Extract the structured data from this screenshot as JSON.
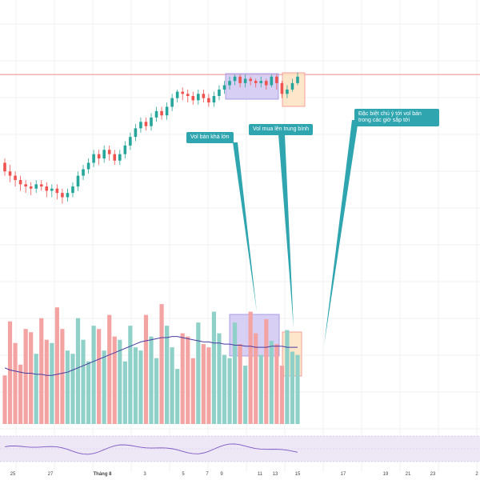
{
  "colors": {
    "up": "#26a69a",
    "down": "#ef5350",
    "up_vol": "#8fd1c8",
    "down_vol": "#f4a3a3",
    "vol_ma": "#4a3b9e",
    "rsi": "#7e57c2",
    "rsi_band": "#ede7f6",
    "resistance": "#f28b8b",
    "highlight_purple": "#c9bff0",
    "highlight_orange": "#fde2bf",
    "callout": "#2fa5b0"
  },
  "callouts": [
    {
      "text": "Vol bán khá lớn"
    },
    {
      "text": "Vol mua lên trung bình"
    },
    {
      "text": "Đặc biệt chú ý tới vol  bán\ntrong các giờ sắp tới"
    }
  ],
  "chart_data": {
    "type": "candlestick",
    "x_ticks": [
      "25",
      "27",
      "Tháng 8",
      "3",
      "5",
      "7",
      "9",
      "11",
      "13",
      "15",
      "17",
      "19",
      "21",
      "23",
      "2"
    ],
    "price": [
      [
        56,
        52,
        50,
        58
      ],
      [
        52,
        50,
        47,
        55
      ],
      [
        50,
        48,
        45,
        52
      ],
      [
        48,
        46,
        43,
        50
      ],
      [
        46,
        45,
        42,
        48
      ],
      [
        45,
        44,
        41,
        47
      ],
      [
        44,
        46,
        42,
        48
      ],
      [
        46,
        45,
        43,
        48
      ],
      [
        45,
        43,
        40,
        47
      ],
      [
        43,
        44,
        40,
        46
      ],
      [
        44,
        42,
        39,
        46
      ],
      [
        42,
        40,
        37,
        44
      ],
      [
        40,
        42,
        38,
        44
      ],
      [
        42,
        45,
        40,
        47
      ],
      [
        45,
        50,
        43,
        52
      ],
      [
        50,
        53,
        48,
        55
      ],
      [
        53,
        56,
        51,
        58
      ],
      [
        56,
        60,
        54,
        62
      ],
      [
        60,
        58,
        55,
        62
      ],
      [
        58,
        62,
        56,
        64
      ],
      [
        62,
        60,
        57,
        64
      ],
      [
        60,
        57,
        55,
        62
      ],
      [
        57,
        60,
        55,
        62
      ],
      [
        60,
        64,
        58,
        66
      ],
      [
        64,
        68,
        62,
        70
      ],
      [
        68,
        72,
        66,
        74
      ],
      [
        72,
        75,
        70,
        77
      ],
      [
        75,
        73,
        71,
        77
      ],
      [
        73,
        77,
        71,
        79
      ],
      [
        77,
        80,
        75,
        82
      ],
      [
        80,
        78,
        76,
        82
      ],
      [
        78,
        82,
        76,
        84
      ],
      [
        82,
        86,
        80,
        88
      ],
      [
        86,
        89,
        84,
        90
      ],
      [
        89,
        88,
        85,
        91
      ],
      [
        88,
        87,
        84,
        90
      ],
      [
        87,
        85,
        83,
        89
      ],
      [
        85,
        88,
        83,
        90
      ],
      [
        88,
        86,
        84,
        90
      ],
      [
        86,
        84,
        82,
        88
      ],
      [
        84,
        87,
        82,
        89
      ],
      [
        87,
        90,
        85,
        92
      ],
      [
        90,
        92,
        88,
        94
      ],
      [
        92,
        94,
        90,
        96
      ],
      [
        94,
        96,
        92,
        97
      ],
      [
        96,
        93,
        91,
        97
      ],
      [
        93,
        95,
        91,
        97
      ],
      [
        95,
        94,
        92,
        96
      ],
      [
        94,
        93,
        91,
        95
      ],
      [
        93,
        94,
        91,
        96
      ],
      [
        94,
        92,
        90,
        95
      ],
      [
        92,
        96,
        91,
        97
      ],
      [
        96,
        93,
        90,
        97
      ],
      [
        93,
        88,
        86,
        94
      ],
      [
        88,
        90,
        86,
        92
      ],
      [
        90,
        93,
        89,
        95
      ],
      [
        93,
        96,
        92,
        98
      ]
    ],
    "volume_ma": [
      52,
      50,
      49,
      48,
      47,
      47,
      46,
      46,
      45,
      45,
      46,
      47,
      48,
      50,
      52,
      54,
      56,
      58,
      60,
      62,
      64,
      66,
      68,
      70,
      72,
      74,
      76,
      77,
      78,
      79,
      80,
      80,
      81,
      81,
      80,
      79,
      78,
      77,
      76,
      76,
      75,
      75,
      74,
      74,
      73,
      73,
      72,
      72,
      71,
      71,
      71,
      72,
      72,
      72,
      71,
      71,
      71
    ],
    "resistance_price": 97
  }
}
